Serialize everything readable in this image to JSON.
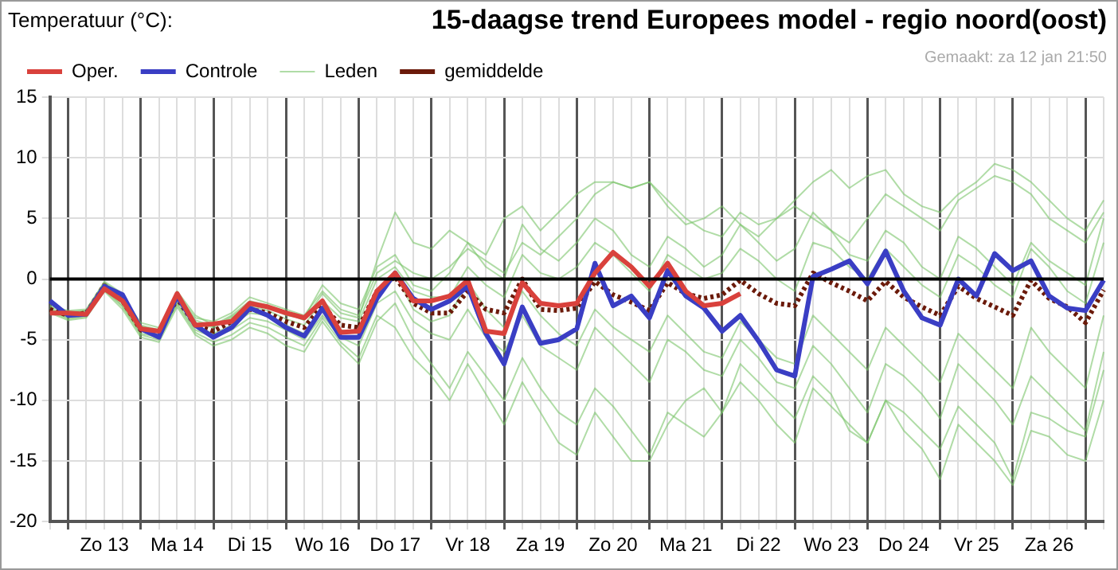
{
  "chart_data": {
    "type": "line",
    "title": "15-daagse trend Europees model - regio noord(oost)",
    "ylabel": "Temperatuur (°C):",
    "annotations": [
      "Gemaakt: za 12 jan 21:50"
    ],
    "categories": [
      null,
      null,
      null,
      "Zo 13",
      null,
      null,
      null,
      "Ma 14",
      null,
      null,
      null,
      "Di 15",
      null,
      null,
      null,
      "Wo 16",
      null,
      null,
      null,
      "Do 17",
      null,
      null,
      null,
      "Vr 18",
      null,
      null,
      null,
      "Za 19",
      null,
      null,
      null,
      "Zo 20",
      null,
      null,
      null,
      "Ma 21",
      null,
      null,
      null,
      "Di 22",
      null,
      null,
      null,
      "Wo 23",
      null,
      null,
      null,
      "Do 24",
      null,
      null,
      null,
      "Vr 25",
      null,
      null,
      null,
      "Za 26",
      null,
      null,
      null
    ],
    "ylim": [
      -20,
      15
    ],
    "yticks": [
      -20,
      -15,
      -10,
      -5,
      0,
      5,
      10,
      15
    ],
    "grid": true,
    "legend": "top left",
    "marker": "none",
    "line_style": "solid",
    "ref_lines": [
      {
        "axis": "y",
        "value": 0,
        "color": "#000000"
      }
    ],
    "series": [
      {
        "name": "Oper.",
        "color": "#d9413c",
        "values": [
          -2.8,
          -2.8,
          -2.9,
          -0.8,
          -1.8,
          -4.1,
          -4.3,
          -1.2,
          -3.8,
          -3.7,
          -3.5,
          -2.0,
          -2.3,
          -2.8,
          -3.2,
          -1.8,
          -4.4,
          -4.3,
          -1.0,
          0.5,
          -1.8,
          -1.8,
          -1.4,
          -0.1,
          -4.3,
          -4.5,
          -0.3,
          -2.0,
          -2.2,
          -2.0,
          0.5,
          2.2,
          1.0,
          -0.6,
          1.3,
          -1.0,
          -2.2,
          -2.0,
          -1.2,
          null,
          null,
          null,
          null,
          null,
          null,
          null,
          null,
          null,
          null,
          null,
          null,
          null,
          null,
          null,
          null,
          null,
          null,
          null,
          null
        ]
      },
      {
        "name": "Controle",
        "color": "#3a3ec4",
        "values": [
          -1.8,
          -3.0,
          -2.9,
          -0.6,
          -1.3,
          -4.1,
          -4.8,
          -1.4,
          -3.8,
          -4.8,
          -4.0,
          -2.4,
          -3.0,
          -4.0,
          -4.7,
          -2.4,
          -4.8,
          -4.8,
          -1.6,
          0.5,
          -1.6,
          -2.5,
          -1.8,
          -0.6,
          -4.5,
          -7.0,
          -2.3,
          -5.3,
          -5.0,
          -4.1,
          1.3,
          -2.2,
          -1.4,
          -3.2,
          0.7,
          -1.4,
          -2.4,
          -4.3,
          -3.0,
          -5.1,
          -7.5,
          -8.0,
          0.2,
          0.8,
          1.5,
          -0.4,
          2.3,
          -1.0,
          -3.2,
          -3.8,
          0,
          -1.4,
          2.1,
          0.7,
          1.5,
          -1.4,
          -2.4,
          -2.6,
          -0.1
        ]
      },
      {
        "name": "Leden",
        "color": "#7cc46a",
        "values": [
          -2.2,
          -2.6,
          -2.5,
          -0.3,
          -1.5,
          -3.6,
          -4.0,
          -1.2,
          -3.2,
          -3.5,
          -2.8,
          -1.5,
          -2.0,
          -2.5,
          -3.0,
          -1.0,
          -2.5,
          -3.0,
          0.5,
          1.5,
          0.5,
          0.0,
          1.0,
          2.5,
          1.5,
          0.5,
          3.0,
          2.0,
          3.5,
          5.0,
          7.0,
          8.0,
          7.5,
          8.0,
          6.5,
          5.0,
          4.0,
          3.5,
          5.5,
          4.5,
          5.0,
          6.5,
          8.0,
          9.0,
          7.5,
          8.5,
          9.0,
          7.0,
          6.0,
          5.5,
          7.0,
          8.0,
          9.5,
          9.0,
          8.0,
          6.5,
          5.0,
          4.0,
          6.5
        ]
      },
      {
        "name": "gemiddelde",
        "color": "#6b1a0a",
        "line_style": "dotted",
        "values": [
          -2.5,
          -3,
          -2.8,
          -0.5,
          -1.8,
          -4.2,
          -4.5,
          -1.6,
          -3.8,
          -4.3,
          -3.5,
          -2.5,
          -2.8,
          -3.5,
          -4.0,
          -2.2,
          -3.8,
          -4.0,
          -1.0,
          0.2,
          -2.0,
          -2.8,
          -2.8,
          -1.0,
          -2.5,
          -2.8,
          0,
          -2.5,
          -2.6,
          -2.4,
          -0.2,
          -1.3,
          -1.9,
          -2.6,
          -0.3,
          -1.2,
          -1.6,
          -1.3,
          -0.1,
          -1.2,
          -2.0,
          -2.2,
          0.5,
          -0.3,
          -1.0,
          -1.8,
          -0.2,
          -1.5,
          -2.3,
          -3.0,
          -0.6,
          -1.6,
          -2.3,
          -3.0,
          -0.1,
          -1.6,
          -2.3,
          -3.6,
          -0.9
        ]
      },
      {
        "color": "#7cc46a",
        "values": [
          -2.8,
          -3.4,
          -3.2,
          -1.0,
          -2.5,
          -4.8,
          -5.2,
          -2.3,
          -4.6,
          -5.5,
          -5.0,
          -4.0,
          -4.5,
          -5.5,
          -6.0,
          -3.5,
          -5.5,
          -7.0,
          -3.5,
          -2.0,
          -5.0,
          -7.0,
          -9.0,
          -6.0,
          -8.0,
          -10.0,
          -6.5,
          -9.0,
          -11.0,
          -12.0,
          -9.0,
          -10.5,
          -12.5,
          -14.5,
          -11.0,
          -12.0,
          -13.0,
          -11.0,
          -8.5,
          -10.0,
          -12.0,
          -13.5,
          -9.0,
          -10.5,
          -12.0,
          -13.5,
          -10.0,
          -12.5,
          -14.0,
          -16.5,
          -12.0,
          -13.5,
          -15.0,
          -17.0,
          -12.5,
          -13.0,
          -14.5,
          -15.0,
          -10.0
        ]
      },
      {
        "color": "#7cc46a",
        "values": [
          -2.0,
          -2.8,
          -2.6,
          -0.2,
          -1.2,
          -3.8,
          -4.2,
          -1.0,
          -3.0,
          -3.8,
          -3.0,
          -1.8,
          -2.2,
          -3.0,
          -3.2,
          -0.5,
          -2.0,
          -2.5,
          1.0,
          2.0,
          -0.5,
          -1.0,
          0.5,
          3.0,
          1.0,
          0.0,
          4.5,
          2.5,
          1.5,
          3.0,
          5.0,
          4.0,
          2.0,
          1.0,
          3.5,
          2.5,
          1.0,
          2.0,
          4.5,
          3.0,
          1.5,
          2.5,
          5.5,
          4.0,
          2.0,
          1.5,
          4.0,
          3.0,
          1.0,
          0.0,
          3.5,
          2.5,
          1.0,
          -0.5,
          3.0,
          1.5,
          0.5,
          -0.5,
          5.0
        ]
      },
      {
        "color": "#7cc46a",
        "values": [
          -2.6,
          -3.2,
          -3.0,
          -0.8,
          -2.2,
          -4.5,
          -4.8,
          -2.0,
          -4.2,
          -4.8,
          -4.2,
          -3.2,
          -3.5,
          -4.2,
          -5.0,
          -3.0,
          -4.8,
          -5.5,
          -2.0,
          -1.0,
          -3.5,
          -4.5,
          -5.0,
          -2.5,
          -4.8,
          -6.0,
          -3.0,
          -5.5,
          -6.5,
          -7.5,
          -4.0,
          -5.5,
          -7.0,
          -8.5,
          -5.0,
          -6.0,
          -7.5,
          -8.0,
          -5.0,
          -6.5,
          -8.5,
          -9.0,
          -5.5,
          -7.0,
          -9.0,
          -11.0,
          -7.0,
          -8.0,
          -9.5,
          -11.5,
          -7.0,
          -8.5,
          -10.0,
          -12.0,
          -8.0,
          -9.5,
          -11.0,
          -12.5,
          -6.0
        ]
      },
      {
        "color": "#7cc46a",
        "values": [
          -2.4,
          -2.9,
          -2.7,
          -0.6,
          -1.9,
          -4.0,
          -4.4,
          -1.5,
          -3.6,
          -4.0,
          -3.2,
          -2.2,
          -2.6,
          -3.3,
          -3.8,
          -1.8,
          -3.2,
          -3.5,
          0.0,
          1.0,
          -1.0,
          -1.5,
          -1.5,
          1.0,
          -0.5,
          -1.5,
          2.0,
          0.5,
          0.0,
          1.0,
          3.0,
          2.0,
          0.5,
          -1.0,
          2.0,
          1.0,
          0.0,
          0.5,
          2.5,
          1.5,
          0.0,
          -1.0,
          3.0,
          2.5,
          1.0,
          0.0,
          2.5,
          1.0,
          -0.5,
          -1.5,
          2.0,
          1.0,
          -0.5,
          -1.5,
          2.5,
          1.0,
          -1.0,
          -2.0,
          3.0
        ]
      },
      {
        "color": "#7cc46a",
        "values": [
          -2.3,
          -2.7,
          -2.6,
          -0.4,
          -1.6,
          -3.9,
          -4.3,
          -1.3,
          -3.4,
          -3.9,
          -3.1,
          -2.0,
          -2.3,
          -2.8,
          -3.4,
          -1.2,
          -2.8,
          -3.2,
          1.5,
          5.5,
          3.0,
          2.5,
          4.0,
          3.0,
          2.0,
          5.0,
          6.0,
          4.0,
          5.5,
          7.0,
          8.0,
          8.0,
          7.5,
          8.0,
          6.0,
          4.5,
          5.0,
          6.0,
          4.5,
          3.5,
          5.0,
          6.0,
          5.0,
          4.0,
          3.0,
          5.0,
          7.0,
          6.0,
          5.0,
          4.0,
          6.5,
          7.5,
          8.5,
          8.0,
          7.0,
          5.0,
          4.0,
          3.0,
          5.5
        ]
      },
      {
        "color": "#7cc46a",
        "values": [
          -2.7,
          -3.3,
          -3.1,
          -0.9,
          -2.3,
          -4.6,
          -5.0,
          -2.1,
          -4.4,
          -5.2,
          -4.6,
          -3.6,
          -4.0,
          -4.8,
          -5.5,
          -3.2,
          -5.2,
          -6.5,
          -3.0,
          -4.0,
          -6.5,
          -8.0,
          -10.0,
          -7.0,
          -9.5,
          -12.0,
          -8.5,
          -11.0,
          -13.5,
          -14.5,
          -11.0,
          -13.0,
          -15.0,
          -15.0,
          -12.0,
          -10.0,
          -9.0,
          -11.0,
          -7.0,
          -8.5,
          -10.0,
          -11.5,
          -8.0,
          -9.5,
          -12.5,
          -13.5,
          -10.0,
          -11.0,
          -12.5,
          -14.0,
          -10.5,
          -12.0,
          -13.5,
          -16.5,
          -11.0,
          -11.5,
          -12.5,
          -13.0,
          -7.5
        ]
      },
      {
        "color": "#7cc46a",
        "values": [
          -2.5,
          -3.1,
          -2.9,
          -0.7,
          -2.0,
          -4.3,
          -4.6,
          -1.8,
          -3.9,
          -4.5,
          -3.8,
          -2.8,
          -3.0,
          -3.8,
          -4.5,
          -2.6,
          -4.2,
          -4.5,
          -1.5,
          0.5,
          -2.5,
          -3.5,
          -3.0,
          -0.2,
          -2.5,
          -4.0,
          -1.0,
          -3.0,
          -4.5,
          -5.5,
          -2.5,
          -4.0,
          -5.0,
          -6.0,
          -3.0,
          -4.5,
          -6.0,
          -6.5,
          -3.5,
          -5.0,
          -6.5,
          -7.0,
          -3.0,
          -4.5,
          -6.0,
          -7.5,
          -4.0,
          -5.5,
          -7.0,
          -8.5,
          -4.5,
          -6.0,
          -7.5,
          -9.0,
          -4.0,
          -6.0,
          -7.5,
          -9.0,
          -3.0
        ]
      }
    ]
  }
}
